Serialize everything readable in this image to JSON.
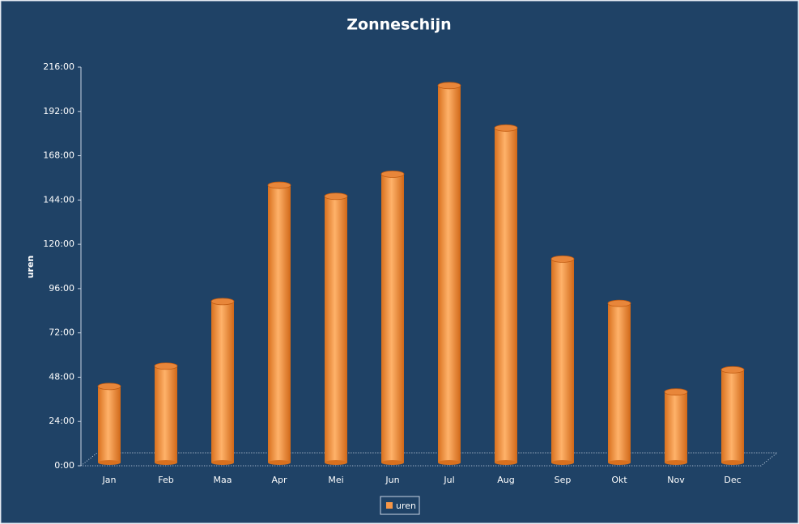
{
  "chart_data": {
    "type": "bar",
    "title": "Zonneschijn",
    "y_label": "uren",
    "categories": [
      "Jan",
      "Feb",
      "Maa",
      "Apr",
      "Mei",
      "Jun",
      "Jul",
      "Aug",
      "Sep",
      "Okt",
      "Nov",
      "Dec"
    ],
    "series": [
      {
        "name": "uren",
        "color": "#f79646",
        "values": [
          43,
          54,
          89,
          152,
          146,
          158,
          206,
          183,
          112,
          88,
          40,
          52
        ]
      }
    ],
    "ylim": [
      0,
      216
    ],
    "yticks": [
      {
        "value": 0,
        "label": "0:00"
      },
      {
        "value": 24,
        "label": "24:00"
      },
      {
        "value": 48,
        "label": "48:00"
      },
      {
        "value": 72,
        "label": "72:00"
      },
      {
        "value": 96,
        "label": "96:00"
      },
      {
        "value": 120,
        "label": "120:00"
      },
      {
        "value": 144,
        "label": "144:00"
      },
      {
        "value": 168,
        "label": "168:00"
      },
      {
        "value": 192,
        "label": "192:00"
      },
      {
        "value": 216,
        "label": "216:00"
      }
    ],
    "legend": "bottom"
  }
}
